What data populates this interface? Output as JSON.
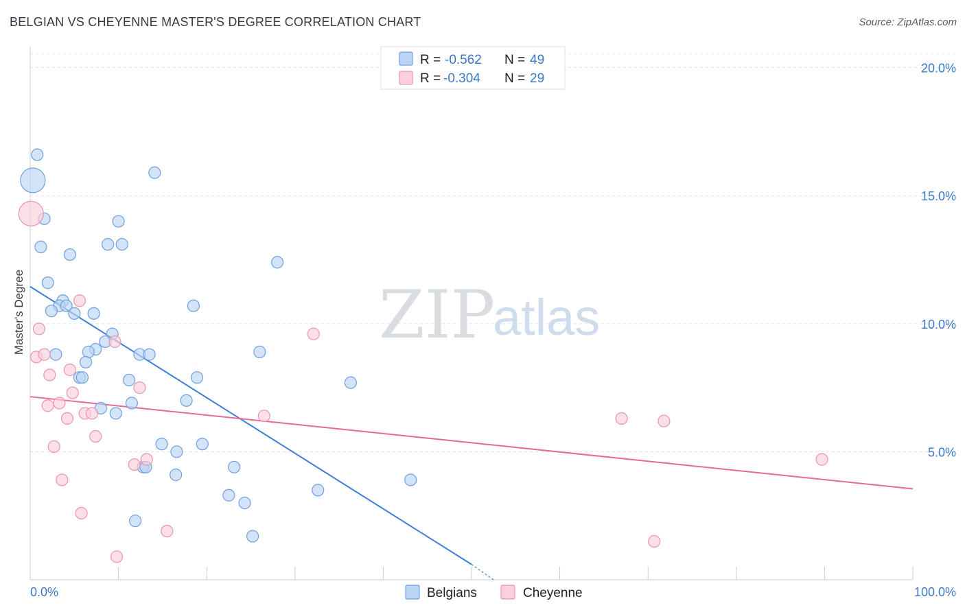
{
  "header": {
    "title": "BELGIAN VS CHEYENNE MASTER'S DEGREE CORRELATION CHART",
    "source": "Source: ZipAtlas.com"
  },
  "watermark": {
    "zip": "ZIP",
    "atlas": "atlas"
  },
  "legend_top": {
    "r_label": "R =",
    "n_label": "N =",
    "rows": [
      {
        "r": "-0.562",
        "n": "49",
        "swatch": "#bcd4f5",
        "swatch_border": "#6f9fde"
      },
      {
        "r": "-0.304",
        "n": "29",
        "swatch": "#fbd0dc",
        "swatch_border": "#ec93ad"
      }
    ]
  },
  "legend_bottom": [
    {
      "label": "Belgians",
      "swatch": "#bcd4f5",
      "swatch_border": "#6f9fde"
    },
    {
      "label": "Cheyenne",
      "swatch": "#fbd0dc",
      "swatch_border": "#ec93ad"
    }
  ],
  "chart_data": {
    "type": "scatter",
    "title": "BELGIAN VS CHEYENNE MASTER'S DEGREE CORRELATION CHART",
    "xlabel": "",
    "ylabel": "Master's Degree",
    "xlim": [
      0,
      100
    ],
    "ylim": [
      0,
      20.5
    ],
    "x_tick_labels": {
      "min": "0.0%",
      "max": "100.0%"
    },
    "y_ticks": [
      {
        "value": 5,
        "label": "5.0%"
      },
      {
        "value": 10,
        "label": "10.0%"
      },
      {
        "value": 15,
        "label": "15.0%"
      },
      {
        "value": 20,
        "label": "20.0%"
      }
    ],
    "grid": true,
    "series": [
      {
        "name": "Belgians",
        "color": "#3d7fd4",
        "fill": "#bcd4f5",
        "stroke": "#6f9fde",
        "points": [
          {
            "x": 0.3,
            "y": 15.6,
            "big": true
          },
          {
            "x": 0.8,
            "y": 16.6
          },
          {
            "x": 1.6,
            "y": 14.1
          },
          {
            "x": 1.2,
            "y": 13.0
          },
          {
            "x": 14.1,
            "y": 15.9
          },
          {
            "x": 4.5,
            "y": 12.7
          },
          {
            "x": 8.8,
            "y": 13.1
          },
          {
            "x": 10.4,
            "y": 13.1
          },
          {
            "x": 10.0,
            "y": 14.0
          },
          {
            "x": 28.0,
            "y": 12.4
          },
          {
            "x": 2.0,
            "y": 11.6
          },
          {
            "x": 3.7,
            "y": 10.9
          },
          {
            "x": 3.3,
            "y": 10.7
          },
          {
            "x": 4.1,
            "y": 10.7
          },
          {
            "x": 2.4,
            "y": 10.5
          },
          {
            "x": 5.0,
            "y": 10.4
          },
          {
            "x": 7.2,
            "y": 10.4
          },
          {
            "x": 18.5,
            "y": 10.7
          },
          {
            "x": 9.3,
            "y": 9.6
          },
          {
            "x": 8.5,
            "y": 9.3
          },
          {
            "x": 7.4,
            "y": 9.0
          },
          {
            "x": 6.6,
            "y": 8.9
          },
          {
            "x": 2.9,
            "y": 8.8
          },
          {
            "x": 12.4,
            "y": 8.8
          },
          {
            "x": 13.5,
            "y": 8.8
          },
          {
            "x": 26.0,
            "y": 8.9
          },
          {
            "x": 6.3,
            "y": 8.5
          },
          {
            "x": 5.6,
            "y": 7.9
          },
          {
            "x": 5.9,
            "y": 7.9
          },
          {
            "x": 11.2,
            "y": 7.8
          },
          {
            "x": 18.9,
            "y": 7.9
          },
          {
            "x": 36.3,
            "y": 7.7
          },
          {
            "x": 17.7,
            "y": 7.0
          },
          {
            "x": 11.5,
            "y": 6.9
          },
          {
            "x": 8.0,
            "y": 6.7
          },
          {
            "x": 9.7,
            "y": 6.5
          },
          {
            "x": 14.9,
            "y": 5.3
          },
          {
            "x": 19.5,
            "y": 5.3
          },
          {
            "x": 16.6,
            "y": 5.0
          },
          {
            "x": 12.8,
            "y": 4.4
          },
          {
            "x": 13.1,
            "y": 4.4
          },
          {
            "x": 23.1,
            "y": 4.4
          },
          {
            "x": 16.5,
            "y": 4.1
          },
          {
            "x": 43.1,
            "y": 3.9
          },
          {
            "x": 32.6,
            "y": 3.5
          },
          {
            "x": 22.5,
            "y": 3.3
          },
          {
            "x": 24.3,
            "y": 3.0
          },
          {
            "x": 11.9,
            "y": 2.3
          },
          {
            "x": 25.2,
            "y": 1.7
          }
        ],
        "trendline": {
          "x1": 0,
          "y1": 11.45,
          "x2": 50,
          "y2": 0.6,
          "dash_x2": 52.5,
          "dash_y2": 0.0
        }
      },
      {
        "name": "Cheyenne",
        "color": "#e46b95",
        "fill": "#fbd0dc",
        "stroke": "#ec93ad",
        "points": [
          {
            "x": 0.1,
            "y": 14.3,
            "big": true
          },
          {
            "x": 5.6,
            "y": 10.9
          },
          {
            "x": 1.0,
            "y": 9.8
          },
          {
            "x": 32.1,
            "y": 9.6
          },
          {
            "x": 9.6,
            "y": 9.3
          },
          {
            "x": 0.7,
            "y": 8.7
          },
          {
            "x": 1.6,
            "y": 8.8
          },
          {
            "x": 4.5,
            "y": 8.2
          },
          {
            "x": 2.2,
            "y": 8.0
          },
          {
            "x": 12.4,
            "y": 7.5
          },
          {
            "x": 4.8,
            "y": 7.3
          },
          {
            "x": 3.3,
            "y": 6.9
          },
          {
            "x": 2.0,
            "y": 6.8
          },
          {
            "x": 6.2,
            "y": 6.5
          },
          {
            "x": 7.0,
            "y": 6.5
          },
          {
            "x": 4.2,
            "y": 6.3
          },
          {
            "x": 26.5,
            "y": 6.4
          },
          {
            "x": 67.0,
            "y": 6.3
          },
          {
            "x": 71.8,
            "y": 6.2
          },
          {
            "x": 7.4,
            "y": 5.6
          },
          {
            "x": 2.7,
            "y": 5.2
          },
          {
            "x": 13.2,
            "y": 4.7
          },
          {
            "x": 11.8,
            "y": 4.5
          },
          {
            "x": 89.7,
            "y": 4.7
          },
          {
            "x": 3.6,
            "y": 3.9
          },
          {
            "x": 5.8,
            "y": 2.6
          },
          {
            "x": 15.5,
            "y": 1.9
          },
          {
            "x": 70.7,
            "y": 1.5
          },
          {
            "x": 9.8,
            "y": 0.9
          }
        ],
        "trendline": {
          "x1": 0,
          "y1": 7.15,
          "x2": 100,
          "y2": 3.55
        }
      }
    ]
  }
}
